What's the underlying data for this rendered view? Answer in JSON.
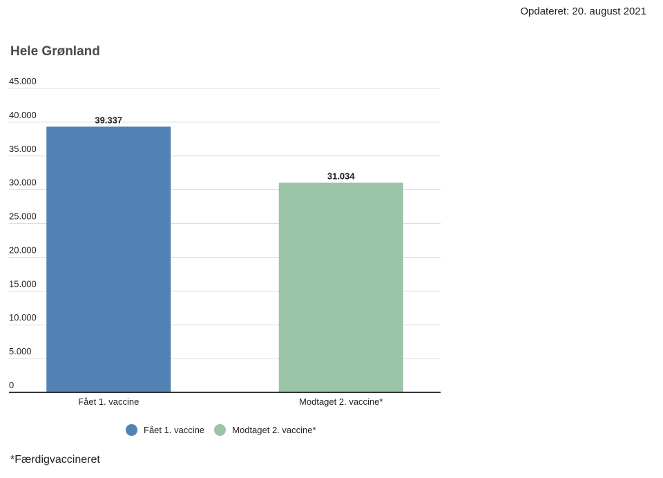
{
  "updated_text": "Opdateret: 20. august 2021",
  "footnote": "*Færdigvaccineret",
  "chart_data": {
    "type": "bar",
    "title": "Hele Grønland",
    "categories": [
      "Fået 1. vaccine",
      "Modtaget 2. vaccine*"
    ],
    "values": [
      39337,
      31034
    ],
    "data_labels": [
      "39.337",
      "31.034"
    ],
    "colors": [
      "#5182b3",
      "#9bc3a8"
    ],
    "ylim": [
      0,
      45000
    ],
    "yticks": [
      0,
      5000,
      10000,
      15000,
      20000,
      25000,
      30000,
      35000,
      40000,
      45000
    ],
    "ytick_labels": [
      "0",
      "5.000",
      "10.000",
      "15.000",
      "20.000",
      "25.000",
      "30.000",
      "35.000",
      "40.000",
      "45.000"
    ],
    "grid": true,
    "legend": {
      "placement": "bottom",
      "entries": [
        "Fået 1. vaccine",
        "Modtaget 2. vaccine*"
      ]
    }
  }
}
